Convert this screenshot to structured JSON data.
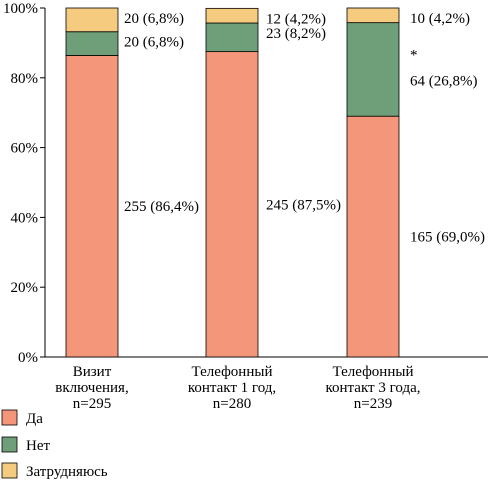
{
  "chart_data": {
    "type": "bar",
    "stacked": true,
    "percent": true,
    "title": "",
    "xlabel": "",
    "ylabel": "",
    "ylim": [
      0,
      100
    ],
    "y_ticks": [
      "0%",
      "20%",
      "40%",
      "60%",
      "80%",
      "100%"
    ],
    "grid": false,
    "legend_position": "bottom-left",
    "categories": [
      [
        "Визит",
        "включения,",
        "n=295"
      ],
      [
        "Телефонный",
        "контакт 1 год,",
        "n=280"
      ],
      [
        "Телефонный",
        "контакт 3 года,",
        "n=239"
      ]
    ],
    "series": [
      {
        "name": "Да",
        "color": "#f4967a",
        "values": [
          86.4,
          87.5,
          69.0
        ],
        "labels": [
          "255 (86,4%)",
          "245 (87,5%)",
          "165 (69,0%)"
        ]
      },
      {
        "name": "Нет",
        "color": "#6e9f78",
        "values": [
          6.8,
          8.2,
          26.8
        ],
        "labels": [
          "20 (6,8%)",
          "23 (8,2%)",
          "64 (26,8%)"
        ]
      },
      {
        "name": "Затрудняюсь",
        "color": "#f5cc7f",
        "values": [
          6.8,
          4.2,
          4.2
        ],
        "labels": [
          "20 (6,8%)",
          "12 (4,2%)",
          "10 (4,2%)"
        ]
      }
    ],
    "annotations": [
      {
        "text": "*",
        "category_index": 2,
        "series_index": 1
      }
    ]
  }
}
